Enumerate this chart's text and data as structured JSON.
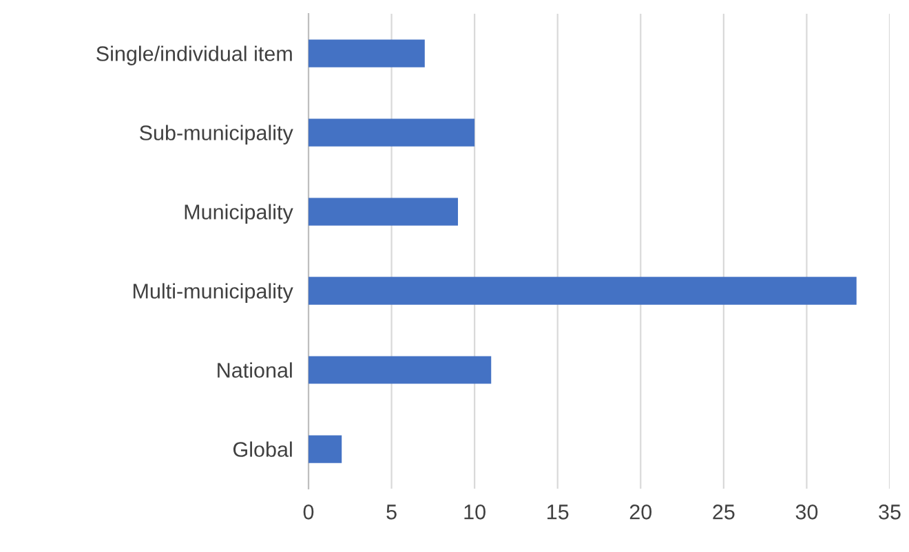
{
  "chart_data": {
    "type": "bar",
    "orientation": "horizontal",
    "categories": [
      "Single/individual item",
      "Sub-municipality",
      "Municipality",
      "Multi-municipality",
      "National",
      "Global"
    ],
    "values": [
      7,
      10,
      9,
      33,
      11,
      2
    ],
    "color": "#4472c4",
    "xlim": [
      0,
      35
    ],
    "xticks": [
      0,
      5,
      10,
      15,
      20,
      25,
      30,
      35
    ],
    "grid": "x"
  }
}
